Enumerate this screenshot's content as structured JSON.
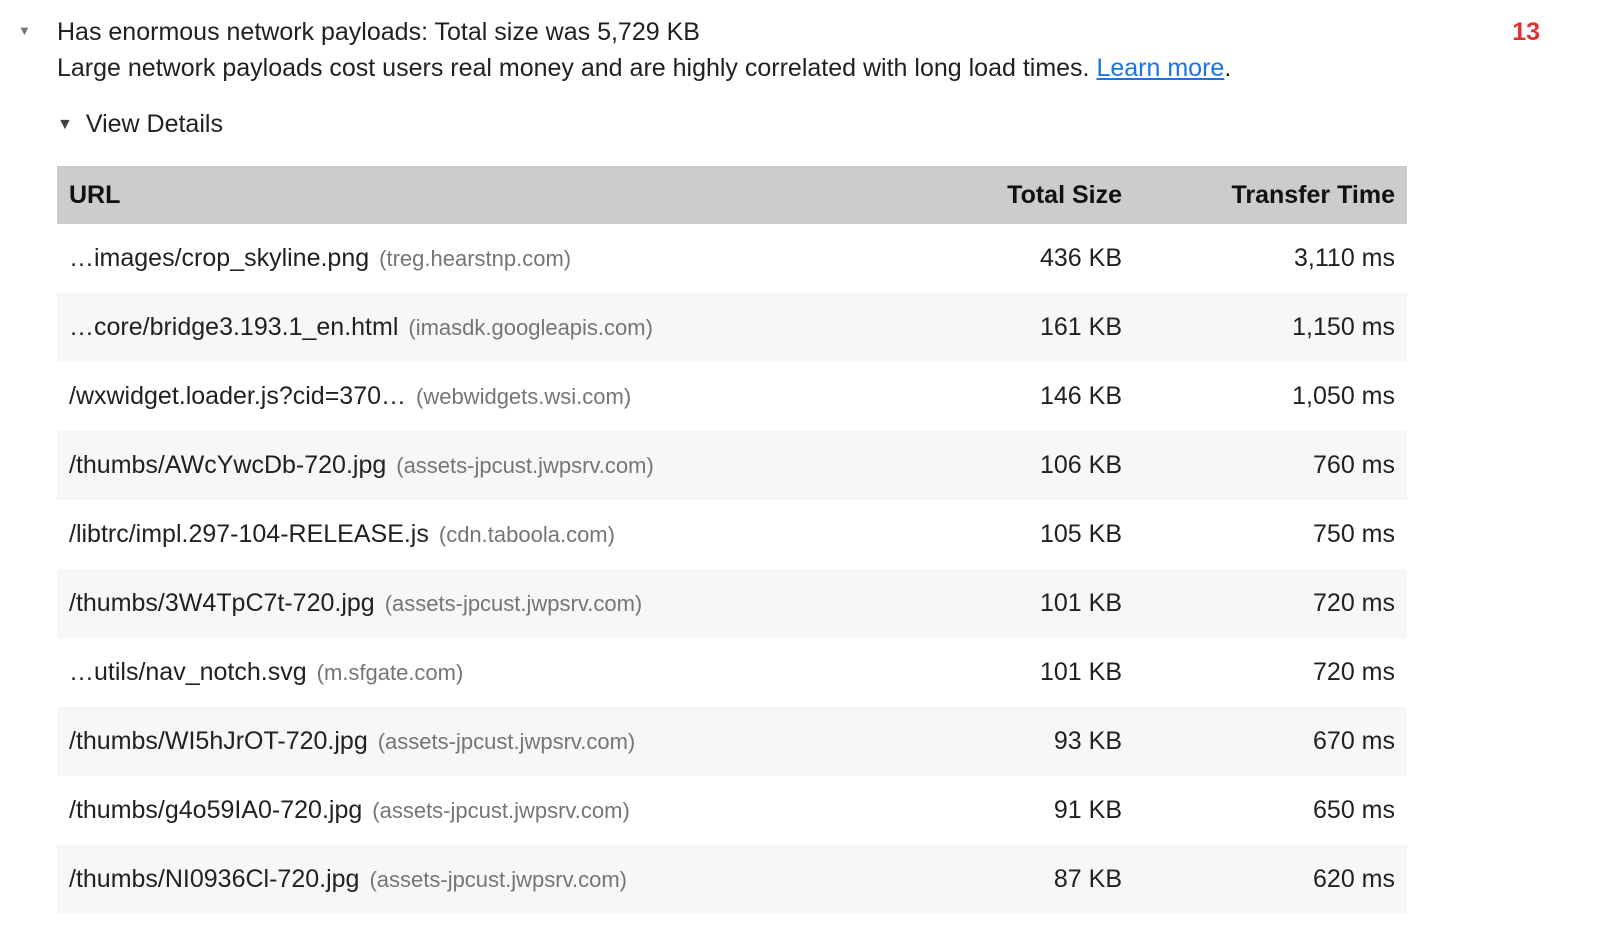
{
  "audit": {
    "disclosure_icon": "▼",
    "title": "Has enormous network payloads: Total size was 5,729 KB",
    "description": "Large network payloads cost users real money and are highly correlated with long load times.",
    "learn_more": "Learn more",
    "period": ".",
    "score": "13"
  },
  "details": {
    "toggle_icon": "▼",
    "toggle_label": "View Details"
  },
  "table": {
    "headers": {
      "url": "URL",
      "size": "Total Size",
      "time": "Transfer Time"
    },
    "rows": [
      {
        "url": "…images/crop_skyline.png",
        "domain": "(treg.hearstnp.com)",
        "size": "436 KB",
        "time": "3,110 ms"
      },
      {
        "url": "…core/bridge3.193.1_en.html",
        "domain": "(imasdk.googleapis.com)",
        "size": "161 KB",
        "time": "1,150 ms"
      },
      {
        "url": "/wxwidget.loader.js?cid=370…",
        "domain": "(webwidgets.wsi.com)",
        "size": "146 KB",
        "time": "1,050 ms"
      },
      {
        "url": "/thumbs/AWcYwcDb-720.jpg",
        "domain": "(assets-jpcust.jwpsrv.com)",
        "size": "106 KB",
        "time": "760 ms"
      },
      {
        "url": "/libtrc/impl.297-104-RELEASE.js",
        "domain": "(cdn.taboola.com)",
        "size": "105 KB",
        "time": "750 ms"
      },
      {
        "url": "/thumbs/3W4TpC7t-720.jpg",
        "domain": "(assets-jpcust.jwpsrv.com)",
        "size": "101 KB",
        "time": "720 ms"
      },
      {
        "url": "…utils/nav_notch.svg",
        "domain": "(m.sfgate.com)",
        "size": "101 KB",
        "time": "720 ms"
      },
      {
        "url": "/thumbs/WI5hJrOT-720.jpg",
        "domain": "(assets-jpcust.jwpsrv.com)",
        "size": "93 KB",
        "time": "670 ms"
      },
      {
        "url": "/thumbs/g4o59IA0-720.jpg",
        "domain": "(assets-jpcust.jwpsrv.com)",
        "size": "91 KB",
        "time": "650 ms"
      },
      {
        "url": "/thumbs/NI0936Cl-720.jpg",
        "domain": "(assets-jpcust.jwpsrv.com)",
        "size": "87 KB",
        "time": "620 ms"
      }
    ]
  },
  "colors": {
    "score_fail": "#df332f",
    "link": "#1a73e8",
    "header_bg": "#cccccc",
    "row_alt_bg": "#f7f7f7"
  }
}
